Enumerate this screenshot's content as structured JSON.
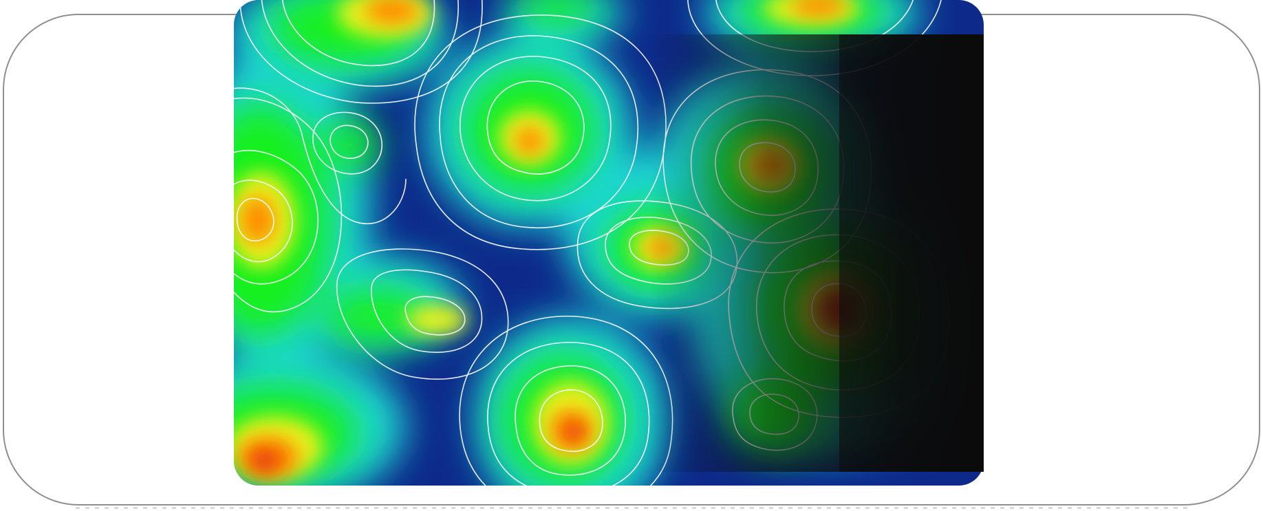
{
  "figure": {
    "kind": "contour heatmap with darkened overlay panel",
    "colormap": [
      "#0d2a8a",
      "#1f6fd1",
      "#1ad6d1",
      "#18f01e",
      "#e8f21a",
      "#ff8a00",
      "#e4320a"
    ],
    "contour_color": "#ffffff",
    "overlay_color": "#0b0b0b",
    "frame_border_color": "#8f8f8f"
  }
}
